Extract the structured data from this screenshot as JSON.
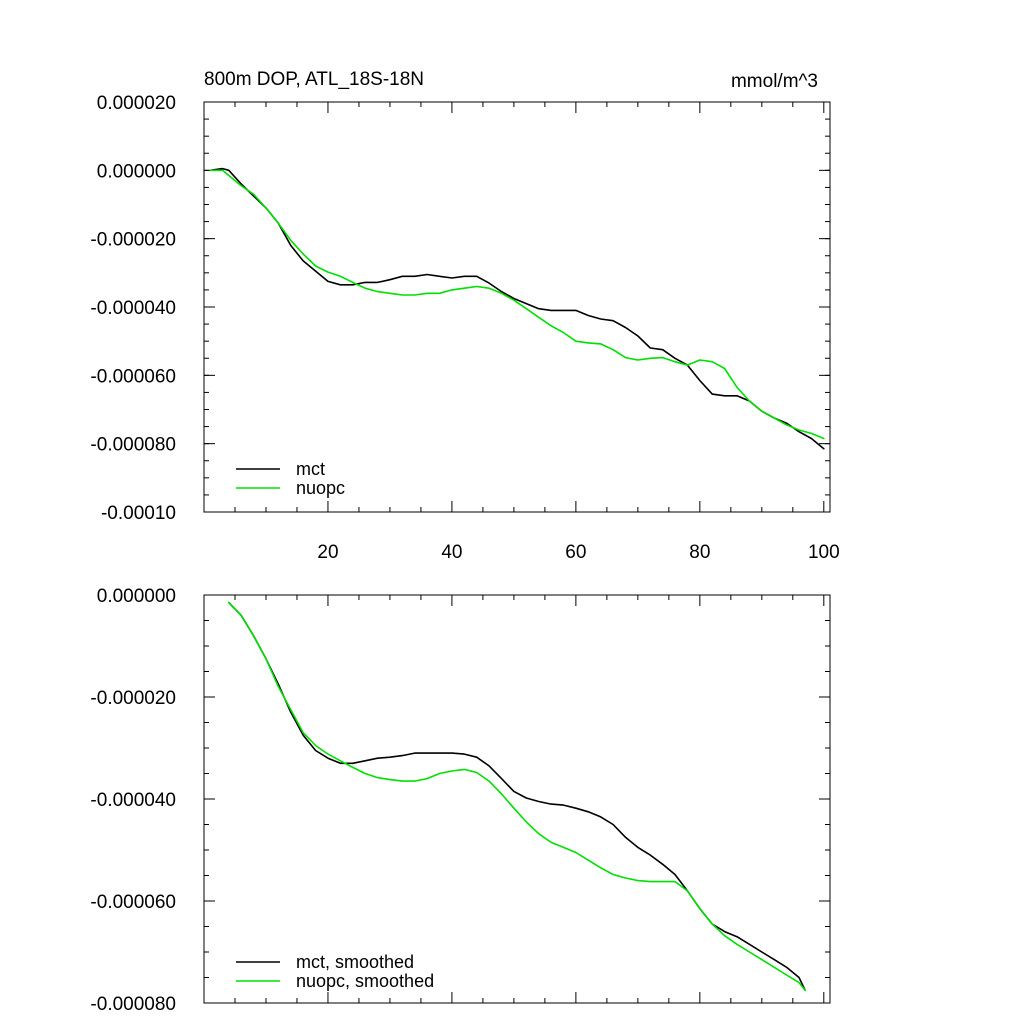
{
  "chart_data": [
    {
      "type": "line",
      "title": "800m DOP, ATL_18S-18N",
      "units": "mmol/m^3",
      "xlabel": "",
      "ylabel": "",
      "xlim": [
        0,
        101
      ],
      "ylim": [
        -0.0001,
        2e-05
      ],
      "xticks": [
        20,
        40,
        60,
        80,
        100
      ],
      "xtick_labels": [
        "20",
        "40",
        "60",
        "80",
        "100"
      ],
      "yticks": [
        2e-05,
        0.0,
        -2e-05,
        -4e-05,
        -6e-05,
        -8e-05,
        -0.0001
      ],
      "ytick_labels": [
        "0.000020",
        "0.000000",
        "-0.000020",
        "-0.000040",
        "-0.000060",
        "-0.000080",
        "-0.00010"
      ],
      "legend": "bottom-left",
      "series": [
        {
          "name": "mct",
          "color": "#000000",
          "x": [
            1,
            3,
            4,
            6,
            8,
            10,
            12,
            14,
            16,
            18,
            20,
            22,
            24,
            26,
            28,
            30,
            32,
            34,
            36,
            38,
            40,
            42,
            44,
            46,
            48,
            50,
            52,
            54,
            56,
            58,
            60,
            62,
            64,
            66,
            68,
            70,
            72,
            74,
            76,
            78,
            80,
            82,
            84,
            86,
            88,
            90,
            92,
            94,
            96,
            98,
            100
          ],
          "y": [
            0.0,
            5e-07,
            0.0,
            -4e-06,
            -7.5e-06,
            -1.1e-05,
            -1.55e-05,
            -2.2e-05,
            -2.65e-05,
            -2.95e-05,
            -3.25e-05,
            -3.35e-05,
            -3.35e-05,
            -3.28e-05,
            -3.28e-05,
            -3.2e-05,
            -3.1e-05,
            -3.1e-05,
            -3.05e-05,
            -3.1e-05,
            -3.15e-05,
            -3.1e-05,
            -3.1e-05,
            -3.3e-05,
            -3.55e-05,
            -3.75e-05,
            -3.9e-05,
            -4.05e-05,
            -4.1e-05,
            -4.1e-05,
            -4.1e-05,
            -4.25e-05,
            -4.35e-05,
            -4.4e-05,
            -4.6e-05,
            -4.85e-05,
            -5.2e-05,
            -5.25e-05,
            -5.5e-05,
            -5.7e-05,
            -6.15e-05,
            -6.55e-05,
            -6.6e-05,
            -6.6e-05,
            -6.75e-05,
            -7.05e-05,
            -7.25e-05,
            -7.4e-05,
            -7.65e-05,
            -7.85e-05,
            -8.15e-05
          ]
        },
        {
          "name": "nuopc",
          "color": "#00e000",
          "x": [
            1,
            3,
            4,
            6,
            8,
            10,
            12,
            14,
            16,
            18,
            20,
            22,
            24,
            26,
            28,
            30,
            32,
            34,
            36,
            38,
            40,
            42,
            44,
            46,
            48,
            50,
            52,
            54,
            56,
            58,
            60,
            62,
            64,
            66,
            68,
            70,
            72,
            74,
            76,
            78,
            80,
            82,
            84,
            86,
            88,
            90,
            92,
            94,
            96,
            98,
            100
          ],
          "y": [
            0.0,
            0.0,
            -1.5e-06,
            -4.5e-06,
            -7e-06,
            -1.1e-05,
            -1.55e-05,
            -2.05e-05,
            -2.45e-05,
            -2.8e-05,
            -2.98e-05,
            -3.1e-05,
            -3.28e-05,
            -3.45e-05,
            -3.55e-05,
            -3.6e-05,
            -3.65e-05,
            -3.65e-05,
            -3.6e-05,
            -3.6e-05,
            -3.5e-05,
            -3.45e-05,
            -3.4e-05,
            -3.45e-05,
            -3.6e-05,
            -3.8e-05,
            -4.05e-05,
            -4.3e-05,
            -4.55e-05,
            -4.75e-05,
            -5e-05,
            -5.05e-05,
            -5.08e-05,
            -5.25e-05,
            -5.48e-05,
            -5.55e-05,
            -5.5e-05,
            -5.48e-05,
            -5.6e-05,
            -5.7e-05,
            -5.55e-05,
            -5.6e-05,
            -5.8e-05,
            -6.35e-05,
            -6.75e-05,
            -7.05e-05,
            -7.25e-05,
            -7.45e-05,
            -7.6e-05,
            -7.7e-05,
            -7.85e-05
          ]
        }
      ]
    },
    {
      "type": "line",
      "title": "",
      "xlabel": "",
      "ylabel": "",
      "xlim": [
        0,
        101
      ],
      "ylim": [
        -8e-05,
        0.0
      ],
      "xticks": [
        20,
        40,
        60,
        80,
        100
      ],
      "xtick_labels": [],
      "yticks": [
        0.0,
        -2e-05,
        -4e-05,
        -6e-05,
        -8e-05
      ],
      "ytick_labels": [
        "0.000000",
        "-0.000020",
        "-0.000040",
        "-0.000060",
        "-0.000080"
      ],
      "legend": "bottom-left",
      "series": [
        {
          "name": "mct, smoothed",
          "color": "#000000",
          "x": [
            4,
            6,
            8,
            10,
            12,
            14,
            16,
            18,
            20,
            22,
            24,
            26,
            28,
            30,
            32,
            34,
            36,
            38,
            40,
            42,
            44,
            46,
            48,
            50,
            52,
            54,
            56,
            58,
            60,
            62,
            64,
            66,
            68,
            70,
            72,
            74,
            76,
            78,
            80,
            82,
            84,
            86,
            88,
            90,
            92,
            94,
            96,
            97
          ],
          "y": [
            -1.5e-06,
            -4e-06,
            -8e-06,
            -1.25e-05,
            -1.75e-05,
            -2.3e-05,
            -2.75e-05,
            -3.05e-05,
            -3.2e-05,
            -3.3e-05,
            -3.3e-05,
            -3.25e-05,
            -3.2e-05,
            -3.18e-05,
            -3.15e-05,
            -3.1e-05,
            -3.1e-05,
            -3.1e-05,
            -3.1e-05,
            -3.12e-05,
            -3.18e-05,
            -3.35e-05,
            -3.6e-05,
            -3.85e-05,
            -3.98e-05,
            -4.05e-05,
            -4.1e-05,
            -4.12e-05,
            -4.18e-05,
            -4.25e-05,
            -4.35e-05,
            -4.5e-05,
            -4.75e-05,
            -4.95e-05,
            -5.1e-05,
            -5.28e-05,
            -5.48e-05,
            -5.8e-05,
            -6.15e-05,
            -6.45e-05,
            -6.6e-05,
            -6.7e-05,
            -6.85e-05,
            -7e-05,
            -7.15e-05,
            -7.3e-05,
            -7.5e-05,
            -7.75e-05
          ]
        },
        {
          "name": "nuopc, smoothed",
          "color": "#00e000",
          "x": [
            4,
            6,
            8,
            10,
            12,
            14,
            16,
            18,
            20,
            22,
            24,
            26,
            28,
            30,
            32,
            34,
            36,
            38,
            40,
            42,
            44,
            46,
            48,
            50,
            52,
            54,
            56,
            58,
            60,
            62,
            64,
            66,
            68,
            70,
            72,
            74,
            76,
            78,
            80,
            82,
            84,
            86,
            88,
            90,
            92,
            94,
            96,
            97
          ],
          "y": [
            -1.5e-06,
            -4e-06,
            -8e-06,
            -1.25e-05,
            -1.8e-05,
            -2.25e-05,
            -2.7e-05,
            -2.95e-05,
            -3.12e-05,
            -3.25e-05,
            -3.38e-05,
            -3.5e-05,
            -3.58e-05,
            -3.62e-05,
            -3.65e-05,
            -3.65e-05,
            -3.6e-05,
            -3.5e-05,
            -3.45e-05,
            -3.42e-05,
            -3.48e-05,
            -3.65e-05,
            -3.9e-05,
            -4.18e-05,
            -4.45e-05,
            -4.68e-05,
            -4.85e-05,
            -4.95e-05,
            -5.05e-05,
            -5.2e-05,
            -5.35e-05,
            -5.48e-05,
            -5.55e-05,
            -5.6e-05,
            -5.62e-05,
            -5.62e-05,
            -5.62e-05,
            -5.8e-05,
            -6.15e-05,
            -6.45e-05,
            -6.68e-05,
            -6.85e-05,
            -7e-05,
            -7.15e-05,
            -7.3e-05,
            -7.45e-05,
            -7.6e-05,
            -7.75e-05
          ]
        }
      ]
    }
  ]
}
